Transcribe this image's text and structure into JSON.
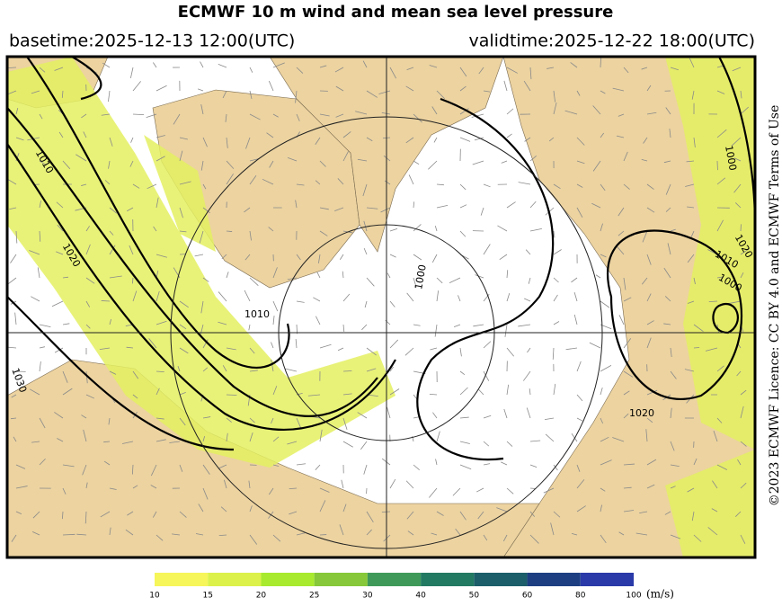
{
  "header": {
    "title": "ECMWF 10 m wind and mean sea level pressure",
    "basetime": "basetime:2025-12-13 12:00(UTC)",
    "validtime": "validtime:2025-12-22 18:00(UTC)"
  },
  "credit": "©2023 ECMWF Licence: CC BY 4.0 and ECMWF Terms of Use",
  "map": {
    "isobar_labels": [
      "1010",
      "1020",
      "1030",
      "1010",
      "1000",
      "1000",
      "1010",
      "1020",
      "1000",
      "1020"
    ]
  },
  "colorbar": {
    "ticks": [
      10,
      15,
      20,
      25,
      30,
      40,
      50,
      60,
      80,
      100
    ],
    "colors": [
      "#f6f65a",
      "#dcf24a",
      "#a8ea2e",
      "#86c83a",
      "#3f9a5a",
      "#237a62",
      "#1c5e6a",
      "#1d3f82",
      "#2a3aa8"
    ],
    "unit": "(m/s)"
  }
}
